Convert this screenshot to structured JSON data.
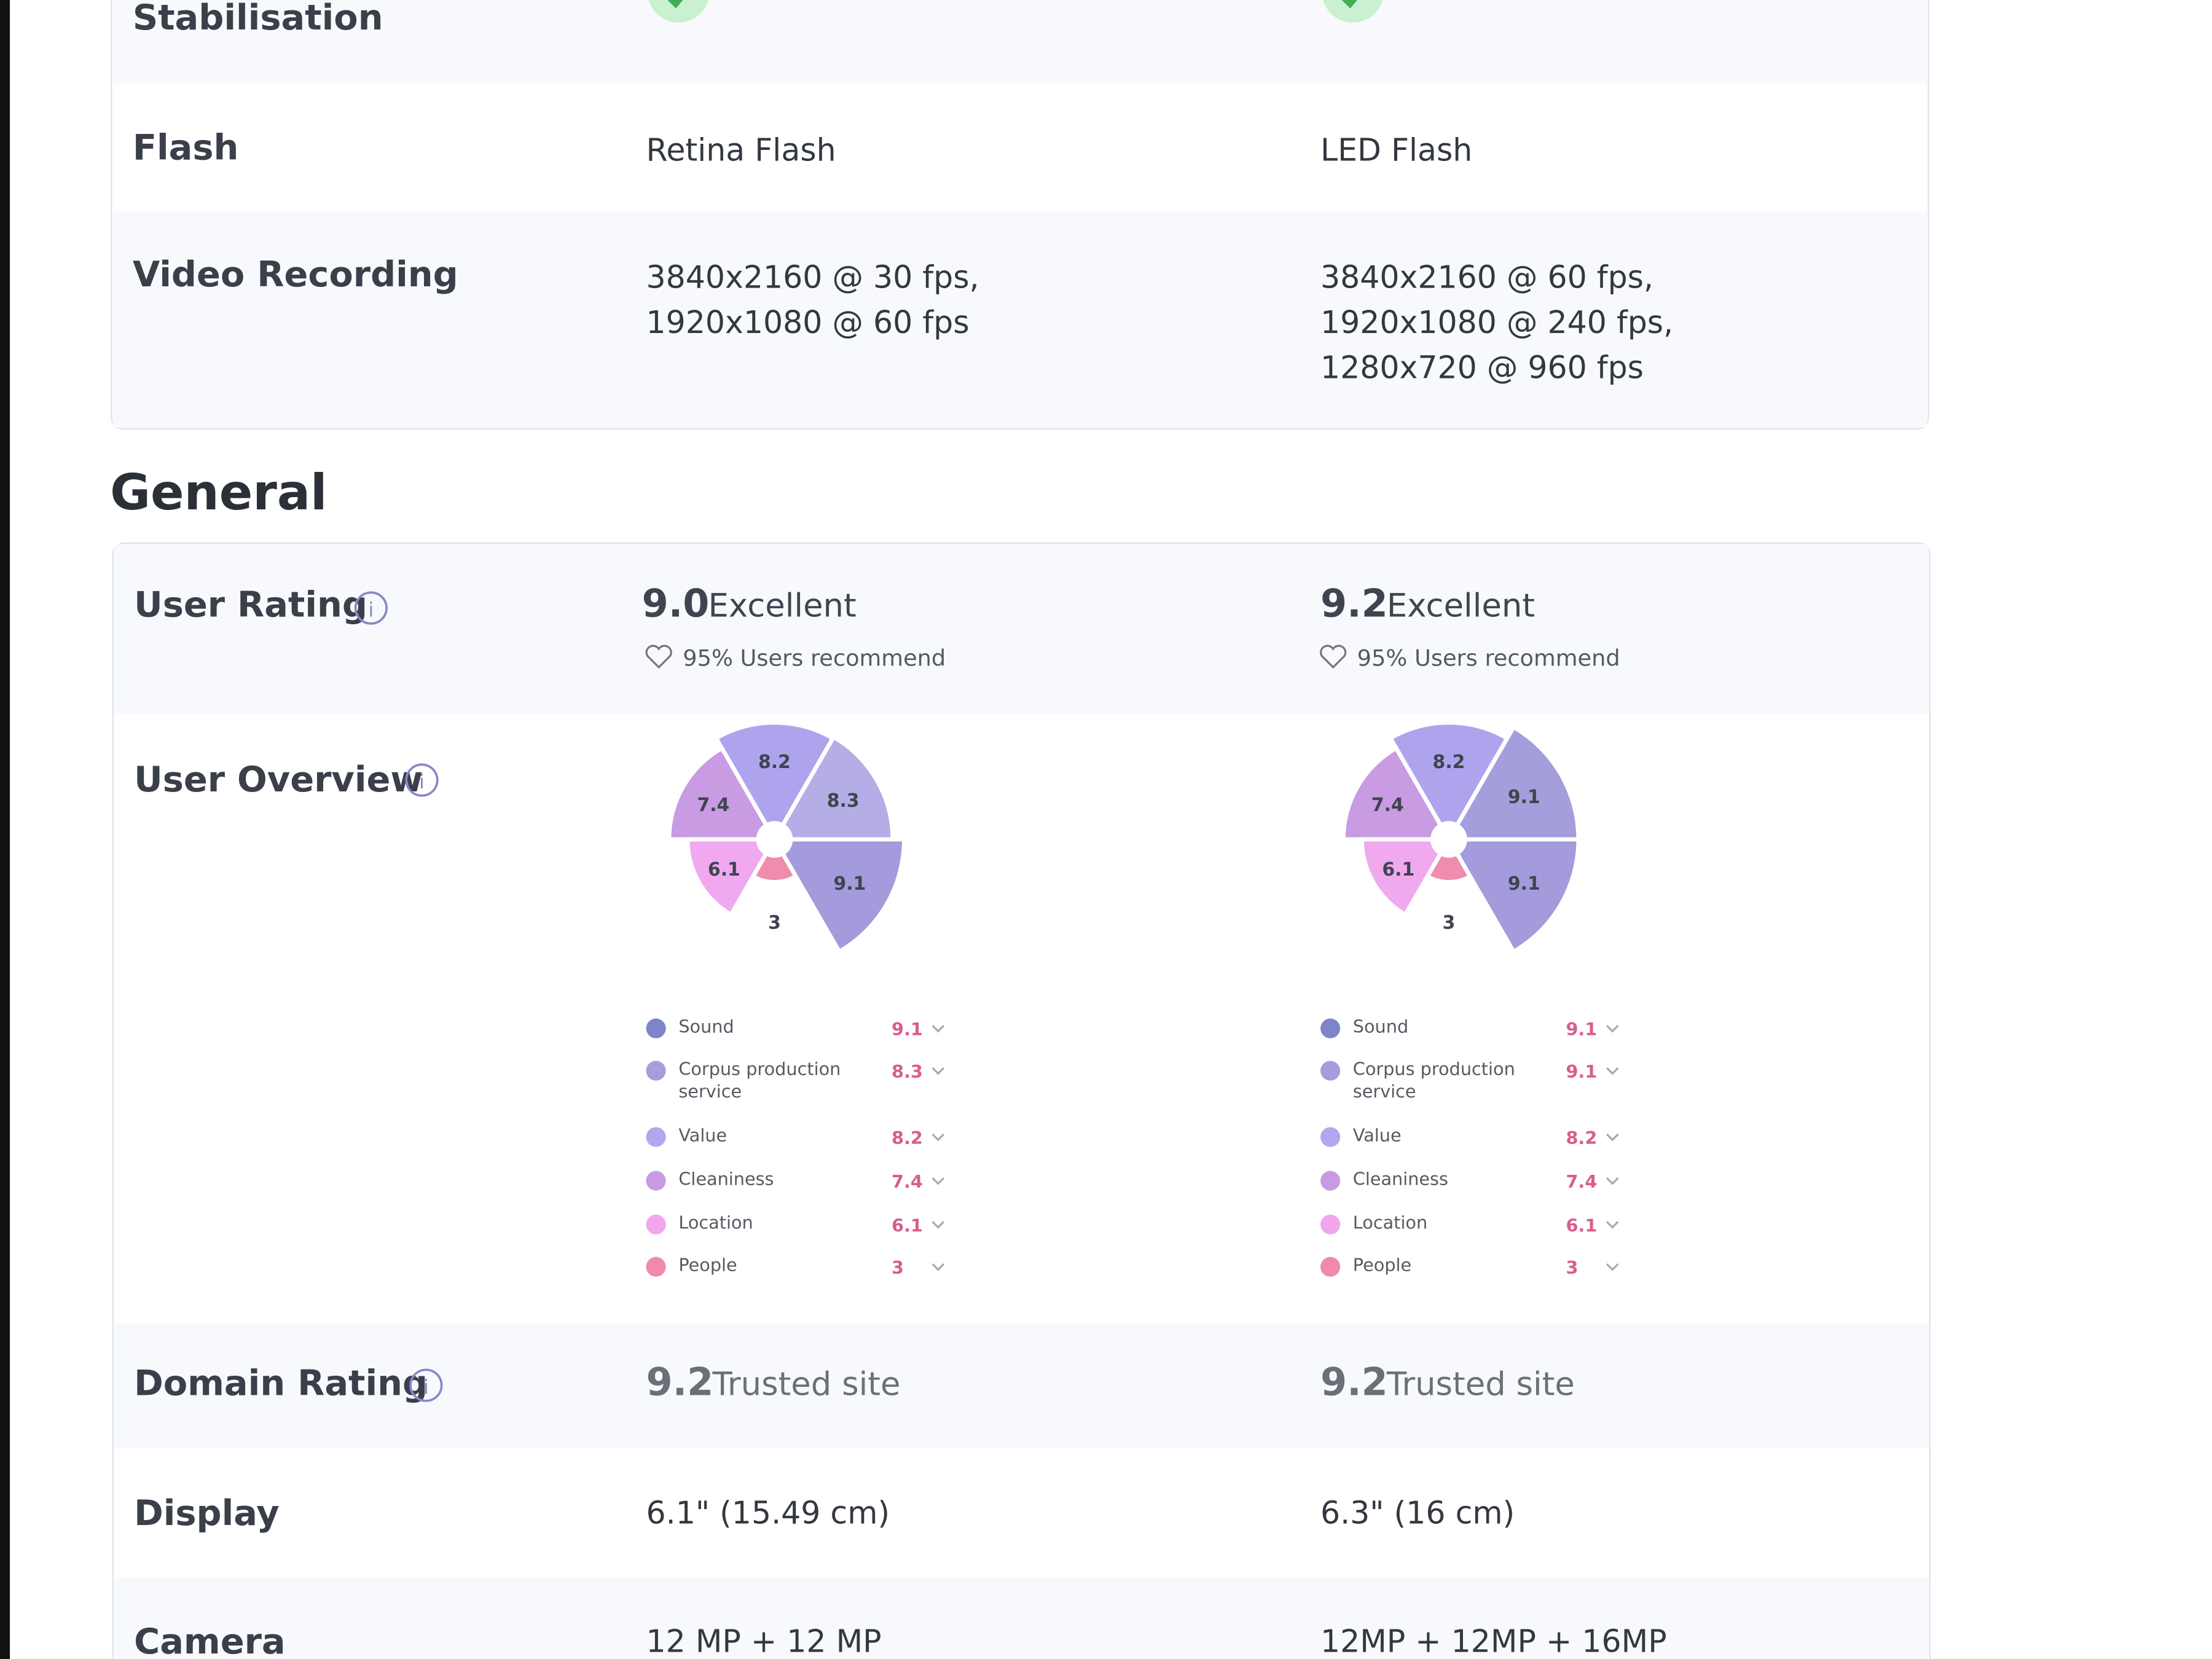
{
  "camera": {
    "rows": [
      {
        "label": "Stabilisation"
      },
      {
        "label": "Flash",
        "values": [
          "Retina Flash",
          "LED Flash"
        ]
      },
      {
        "label": "Video Recording",
        "values": [
          [
            "3840x2160 @ 30 fps,",
            "1920x1080 @ 60 fps"
          ],
          [
            "3840x2160 @ 60 fps,",
            "1920x1080 @ 240 fps,",
            "1280x720 @ 960 fps"
          ]
        ]
      }
    ]
  },
  "general": {
    "title": "General",
    "user_rating": {
      "label": "User Rating",
      "products": [
        {
          "score": "9.0",
          "verdict": "Excellent",
          "recommend": "95% Users recommend"
        },
        {
          "score": "9.2",
          "verdict": "Excellent",
          "recommend": "95% Users recommend"
        }
      ]
    },
    "user_overview": {
      "label": "User Overview",
      "products": [
        {
          "chart_data": {
            "type": "polar",
            "items": [
              {
                "name": "Sound",
                "value": 9.1,
                "color": "#a39bdb",
                "dot": "#7d85c8"
              },
              {
                "name": "Corpus production service",
                "value": 8.3,
                "color": "#b5aee6",
                "dot": "#a49edc"
              },
              {
                "name": "Value",
                "value": 8.2,
                "color": "#aea4ee",
                "dot": "#b1a7ee"
              },
              {
                "name": "Cleaniness",
                "value": 7.4,
                "color": "#c89be2",
                "dot": "#c99ae1"
              },
              {
                "name": "Location",
                "value": 6.1,
                "color": "#f0a8ee",
                "dot": "#f0a6ec"
              },
              {
                "name": "People",
                "value": 3.0,
                "color": "#f08cac",
                "dot": "#ef8aa9"
              }
            ]
          }
        },
        {
          "chart_data": {
            "type": "polar",
            "items": [
              {
                "name": "Sound",
                "value": 9.1,
                "color": "#a39bdb",
                "dot": "#7d85c8"
              },
              {
                "name": "Corpus production service",
                "value": 9.1,
                "color": "#a49edc",
                "dot": "#a49edc"
              },
              {
                "name": "Value",
                "value": 8.2,
                "color": "#aea4ee",
                "dot": "#b1a7ee"
              },
              {
                "name": "Cleaniness",
                "value": 7.4,
                "color": "#c89be2",
                "dot": "#c99ae1"
              },
              {
                "name": "Location",
                "value": 6.1,
                "color": "#f0a8ee",
                "dot": "#f0a6ec"
              },
              {
                "name": "People",
                "value": 3.0,
                "color": "#f08cac",
                "dot": "#ef8aa9"
              }
            ]
          }
        }
      ]
    },
    "domain_rating": {
      "label": "Domain Rating",
      "products": [
        {
          "score": "9.2",
          "verdict": "Trusted site"
        },
        {
          "score": "9.2",
          "verdict": "Trusted site"
        }
      ]
    },
    "display": {
      "label": "Display",
      "values": [
        "6.1\" (15.49 cm)",
        "6.3\" (16 cm)"
      ]
    },
    "camera": {
      "label": "Camera",
      "values": [
        "12 MP + 12 MP",
        "12MP + 12MP + 16MP"
      ]
    }
  }
}
